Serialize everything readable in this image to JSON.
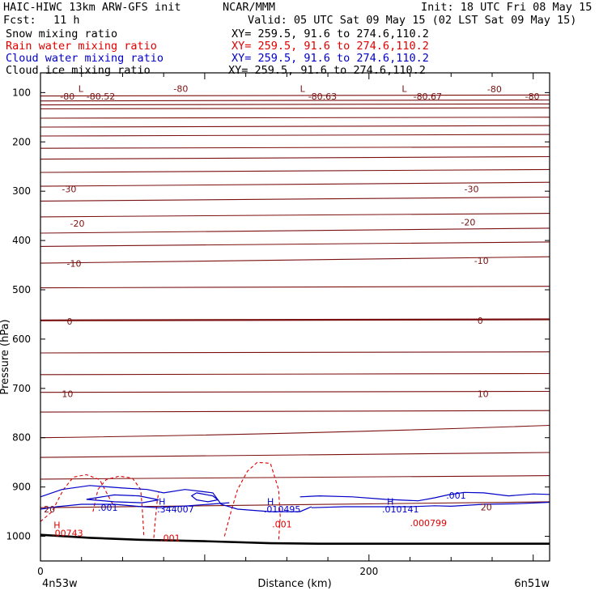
{
  "header": {
    "model": "HAIC-HIWC 13km ARW-GFS init",
    "org": "NCAR/MMM",
    "init": "Init: 18 UTC Fri 08 May 15",
    "fcst_label": "Fcst:",
    "fcst_value": "11 h",
    "valid": "Valid: 05 UTC Sat 09 May 15 (02 LST Sat 09 May 15)"
  },
  "fields": [
    {
      "name": "Snow mixing ratio",
      "xy": "XY= 259.5, 91.6 to 274.6,110.2",
      "color": "#000000"
    },
    {
      "name": "Rain water mixing ratio",
      "xy": "XY= 259.5, 91.6 to 274.6,110.2",
      "color": "#e00000"
    },
    {
      "name": "Cloud water mixing ratio",
      "xy": "XY= 259.5, 91.6 to 274.6,110.2",
      "color": "#0000c8"
    },
    {
      "name": "Cloud ice mixing ratio",
      "xy": "XY= 259.5, 91.6 to 274.6,110.2",
      "color": "#000000"
    }
  ],
  "chart_data": {
    "type": "line",
    "title": "",
    "xlabel": "Distance (km)",
    "ylabel": "Pressure (hPa)",
    "xlim": [
      0,
      310
    ],
    "ylim": [
      1050,
      60
    ],
    "x_ticks": [
      0,
      200
    ],
    "y_ticks": [
      100,
      200,
      300,
      400,
      500,
      600,
      700,
      800,
      900,
      1000
    ],
    "x_end_labels": {
      "left": "4n53w",
      "right": "6n51w"
    },
    "grid": false,
    "colors": {
      "temperature": "#7a1010",
      "rain": "#e00000",
      "cloud_water": "#0000c8",
      "terrain": "#000000"
    },
    "series": [
      {
        "kind": "temperature_isotherms",
        "line_pressures_left": [
          107,
          117,
          125,
          133,
          152,
          170,
          188,
          213,
          235,
          262,
          290,
          320,
          352,
          385,
          412,
          446,
          496,
          562,
          628,
          672,
          708,
          748,
          800,
          840,
          884,
          942
        ],
        "line_pressures_right": [
          105,
          115,
          123,
          131,
          150,
          167,
          185,
          210,
          230,
          256,
          282,
          312,
          345,
          375,
          403,
          433,
          493,
          560,
          626,
          670,
          706,
          745,
          775,
          830,
          877,
          930
        ],
        "bold_line_pressure": 563,
        "labels": [
          {
            "text": "-80",
            "x": 12,
            "p": 108
          },
          {
            "text": "-80.52",
            "x": 28,
            "p": 108
          },
          {
            "text": "-80",
            "x": 81,
            "p": 92
          },
          {
            "text": "-80.63",
            "x": 163,
            "p": 108
          },
          {
            "text": "-80.67",
            "x": 227,
            "p": 108
          },
          {
            "text": "-80",
            "x": 272,
            "p": 93
          },
          {
            "text": "-80",
            "x": 295,
            "p": 108
          },
          {
            "text": "L",
            "x": 23,
            "p": 92
          },
          {
            "text": "L",
            "x": 158,
            "p": 92
          },
          {
            "text": "L",
            "x": 220,
            "p": 92
          },
          {
            "text": "-30",
            "x": 13,
            "p": 296
          },
          {
            "text": "-30",
            "x": 258,
            "p": 296
          },
          {
            "text": "-20",
            "x": 18,
            "p": 365
          },
          {
            "text": "-20",
            "x": 256,
            "p": 363
          },
          {
            "text": "-10",
            "x": 16,
            "p": 447
          },
          {
            "text": "-10",
            "x": 264,
            "p": 441
          },
          {
            "text": "0",
            "x": 16,
            "p": 564
          },
          {
            "text": "0",
            "x": 266,
            "p": 562
          },
          {
            "text": "10",
            "x": 13,
            "p": 711
          },
          {
            "text": "10",
            "x": 266,
            "p": 711
          },
          {
            "text": "20",
            "x": 2,
            "p": 945
          },
          {
            "text": "20",
            "x": 268,
            "p": 941
          }
        ]
      },
      {
        "kind": "rain_water",
        "contours": [
          [
            [
              0,
              970
            ],
            [
              7,
              950
            ],
            [
              14,
              905
            ],
            [
              20,
              880
            ],
            [
              28,
              875
            ],
            [
              36,
              885
            ],
            [
              40,
              910
            ],
            [
              44,
              935
            ]
          ],
          [
            [
              32,
              950
            ],
            [
              35,
              905
            ],
            [
              40,
              885
            ],
            [
              48,
              878
            ],
            [
              56,
              882
            ],
            [
              61,
              905
            ],
            [
              62,
              945
            ],
            [
              63,
              1000
            ]
          ],
          [
            [
              69,
              1003
            ],
            [
              70,
              965
            ],
            [
              71,
              930
            ],
            [
              72,
              910
            ]
          ],
          [
            [
              112,
              1000
            ],
            [
              116,
              950
            ],
            [
              120,
              905
            ],
            [
              126,
              868
            ],
            [
              132,
              850
            ],
            [
              140,
              852
            ],
            [
              145,
              905
            ],
            [
              146,
              960
            ],
            [
              145,
              1010
            ]
          ]
        ],
        "labels": [
          {
            "text": "H",
            "x": 8,
            "p": 977
          },
          {
            "text": ".00743",
            "x": 7,
            "p": 993
          },
          {
            "text": ".001",
            "x": 73,
            "p": 1003
          },
          {
            "text": ".001",
            "x": 141,
            "p": 975
          },
          {
            "text": ".000799",
            "x": 225,
            "p": 973
          }
        ]
      },
      {
        "kind": "cloud_water",
        "contours": [
          [
            [
              0,
              920
            ],
            [
              13,
              905
            ],
            [
              30,
              897
            ],
            [
              50,
              902
            ],
            [
              65,
              905
            ],
            [
              75,
              912
            ],
            [
              88,
              905
            ],
            [
              98,
              909
            ],
            [
              105,
              912
            ],
            [
              110,
              935
            ],
            [
              120,
              945
            ],
            [
              140,
              950
            ],
            [
              158,
              950
            ],
            [
              165,
              940
            ]
          ],
          [
            [
              0,
              945
            ],
            [
              10,
              940
            ],
            [
              25,
              935
            ],
            [
              45,
              935
            ],
            [
              62,
              940
            ],
            [
              72,
              942
            ],
            [
              90,
              938
            ],
            [
              115,
              932
            ]
          ],
          [
            [
              28,
              925
            ],
            [
              45,
              916
            ],
            [
              60,
              918
            ],
            [
              72,
              926
            ],
            [
              62,
              932
            ],
            [
              45,
              930
            ],
            [
              28,
              925
            ]
          ],
          [
            [
              95,
              912
            ],
            [
              105,
              918
            ],
            [
              108,
              926
            ],
            [
              102,
              930
            ],
            [
              95,
              926
            ],
            [
              92,
              918
            ],
            [
              95,
              912
            ]
          ],
          [
            [
              158,
              920
            ],
            [
              170,
              918
            ],
            [
              190,
              920
            ],
            [
              210,
              925
            ],
            [
              230,
              928
            ],
            [
              240,
              922
            ],
            [
              248,
              916
            ],
            [
              258,
              911
            ],
            [
              270,
              912
            ],
            [
              285,
              918
            ],
            [
              300,
              914
            ],
            [
              310,
              915
            ]
          ],
          [
            [
              165,
              942
            ],
            [
              185,
              940
            ],
            [
              205,
              940
            ],
            [
              225,
              940
            ],
            [
              240,
              938
            ],
            [
              250,
              939
            ],
            [
              270,
              935
            ],
            [
              290,
              934
            ],
            [
              310,
              931
            ]
          ]
        ],
        "labels": [
          {
            "text": "H",
            "x": 72,
            "p": 929
          },
          {
            "text": ".344007",
            "x": 71,
            "p": 945
          },
          {
            "text": ".001",
            "x": 35,
            "p": 942
          },
          {
            "text": "H",
            "x": 138,
            "p": 929
          },
          {
            "text": ".010495",
            "x": 136,
            "p": 945
          },
          {
            "text": "H",
            "x": 211,
            "p": 929
          },
          {
            "text": ".010141",
            "x": 208,
            "p": 945
          },
          {
            "text": ".001",
            "x": 247,
            "p": 917
          }
        ]
      },
      {
        "kind": "terrain_surface",
        "points": [
          [
            0,
            997
          ],
          [
            30,
            1003
          ],
          [
            60,
            1007
          ],
          [
            100,
            1010
          ],
          [
            140,
            1014
          ],
          [
            170,
            1015
          ],
          [
            230,
            1015
          ],
          [
            270,
            1015
          ],
          [
            310,
            1015
          ]
        ]
      }
    ]
  }
}
